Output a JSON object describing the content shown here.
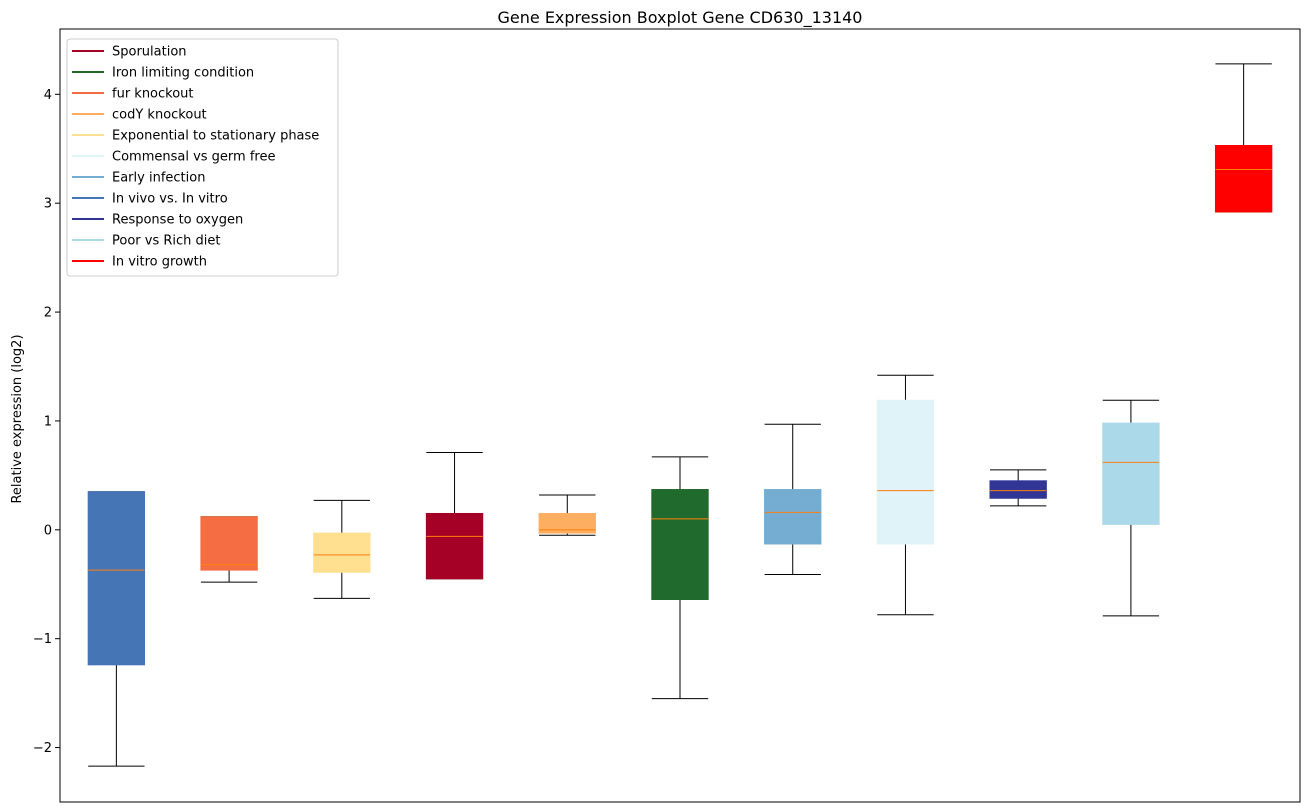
{
  "chart_data": {
    "type": "boxplot",
    "title": "Gene Expression Boxplot Gene CD630_13140",
    "xlabel": "",
    "ylabel": "Relative expression (log2)",
    "ylim": [
      -2.5,
      4.6
    ],
    "yticks": [
      -2,
      -1,
      0,
      1,
      2,
      3,
      4
    ],
    "ytick_labels": [
      "−2",
      "−1",
      "0",
      "1",
      "2",
      "3",
      "4"
    ],
    "legend_position": "top-left",
    "median_color": "#ff7f0e",
    "legend": [
      {
        "label": "Sporulation",
        "color": "#a50026"
      },
      {
        "label": "Iron limiting condition",
        "color": "#216a2d"
      },
      {
        "label": "fur knockout",
        "color": "#f46d43"
      },
      {
        "label": "codY knockout",
        "color": "#fdae61"
      },
      {
        "label": "Exponential to stationary phase",
        "color": "#fee090"
      },
      {
        "label": "Commensal vs germ free",
        "color": "#e0f3f8"
      },
      {
        "label": "Early infection",
        "color": "#74add1"
      },
      {
        "label": "In vivo vs. In vitro",
        "color": "#4575b4"
      },
      {
        "label": "Response to oxygen",
        "color": "#313695"
      },
      {
        "label": "Poor vs Rich diet",
        "color": "#abd9e9"
      },
      {
        "label": "In vitro growth",
        "color": "#ff0000"
      }
    ],
    "boxes": [
      {
        "condition": "In vivo vs. In vitro",
        "color": "#4575b4",
        "whislo": -2.17,
        "q1": -1.24,
        "median": -0.37,
        "q3": 0.35,
        "whishi": 0.35
      },
      {
        "condition": "fur knockout",
        "color": "#f46d43",
        "whislo": -0.48,
        "q1": -0.37,
        "median": -0.32,
        "q3": 0.12,
        "whishi": 0.12
      },
      {
        "condition": "Exponential to stationary phase",
        "color": "#fee090",
        "whislo": -0.63,
        "q1": -0.39,
        "median": -0.23,
        "q3": -0.03,
        "whishi": 0.27
      },
      {
        "condition": "Sporulation",
        "color": "#a50026",
        "whislo": -0.45,
        "q1": -0.45,
        "median": -0.06,
        "q3": 0.15,
        "whishi": 0.71
      },
      {
        "condition": "codY knockout",
        "color": "#fdae61",
        "whislo": -0.05,
        "q1": -0.03,
        "median": 0.0,
        "q3": 0.15,
        "whishi": 0.32
      },
      {
        "condition": "Iron limiting condition",
        "color": "#216a2d",
        "whislo": -1.55,
        "q1": -0.64,
        "median": 0.1,
        "q3": 0.37,
        "whishi": 0.67
      },
      {
        "condition": "Early infection",
        "color": "#74add1",
        "whislo": -0.41,
        "q1": -0.13,
        "median": 0.16,
        "q3": 0.37,
        "whishi": 0.97
      },
      {
        "condition": "Commensal vs germ free",
        "color": "#e0f3f8",
        "whislo": -0.78,
        "q1": -0.13,
        "median": 0.36,
        "q3": 1.19,
        "whishi": 1.42
      },
      {
        "condition": "Response to oxygen",
        "color": "#313695",
        "whislo": 0.22,
        "q1": 0.29,
        "median": 0.36,
        "q3": 0.45,
        "whishi": 0.55
      },
      {
        "condition": "Poor vs Rich diet",
        "color": "#abd9e9",
        "whislo": -0.79,
        "q1": 0.05,
        "median": 0.62,
        "q3": 0.98,
        "whishi": 1.19
      },
      {
        "condition": "In vitro growth",
        "color": "#ff0000",
        "whislo": 2.92,
        "q1": 2.92,
        "median": 3.31,
        "q3": 3.53,
        "whishi": 4.28
      }
    ]
  }
}
